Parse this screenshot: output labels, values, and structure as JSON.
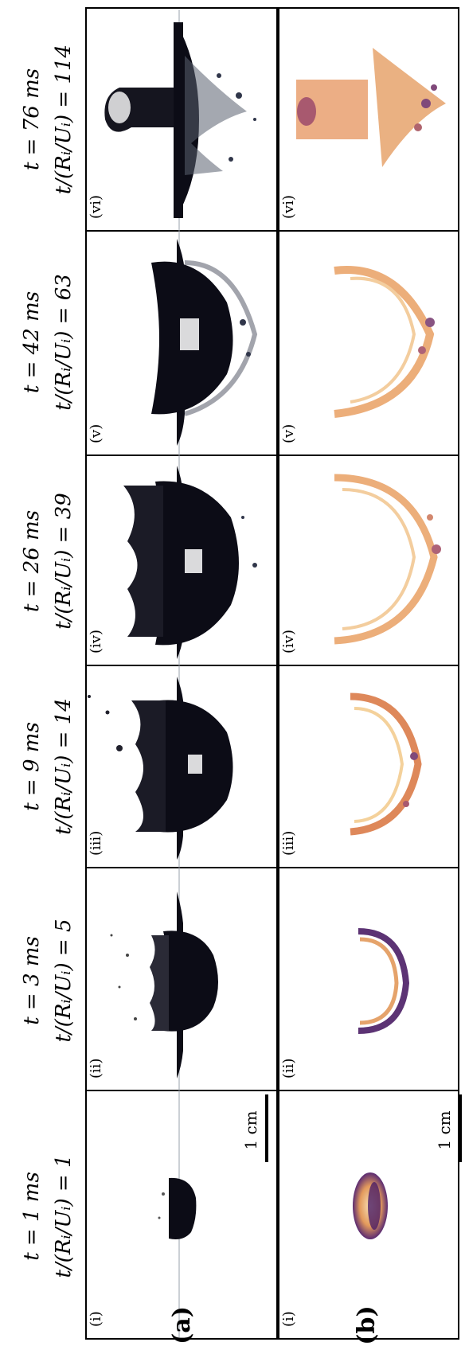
{
  "figure": {
    "row_labels": [
      "(a)",
      "(b)"
    ],
    "scale_bar": "1 cm",
    "panels": [
      {
        "roman": "(i)",
        "time": "t = 1 ms",
        "ratio": "t/(Rᵢ/Uᵢ) = 1"
      },
      {
        "roman": "(ii)",
        "time": "t = 3 ms",
        "ratio": "t/(Rᵢ/Uᵢ) = 5"
      },
      {
        "roman": "(iii)",
        "time": "t = 9 ms",
        "ratio": "t/(Rᵢ/Uᵢ) = 14"
      },
      {
        "roman": "(iv)",
        "time": "t = 26 ms",
        "ratio": "t/(Rᵢ/Uᵢ) = 39"
      },
      {
        "roman": "(v)",
        "time": "t = 42 ms",
        "ratio": "t/(Rᵢ/Uᵢ) = 63"
      },
      {
        "roman": "(vi)",
        "time": "t = 76 ms",
        "ratio": "t/(Rᵢ/Uᵢ) = 114"
      }
    ]
  },
  "colors": {
    "ink": "#0c0c16",
    "frame": "#000000",
    "heat_light": "#f3c98a",
    "heat_mid": "#d9743e",
    "heat_dark": "#4b1e66"
  }
}
